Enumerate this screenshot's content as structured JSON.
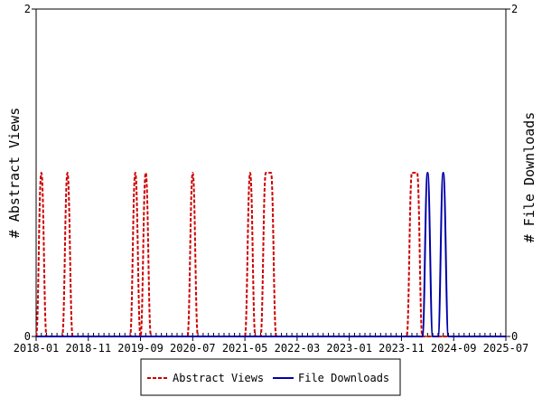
{
  "chart_data": {
    "type": "line",
    "ylabel_left": "# Abstract Views",
    "ylabel_right": "# File Downloads",
    "y_left_ticks": [
      "0",
      "2"
    ],
    "y_right_ticks": [
      "0",
      "2"
    ],
    "ylim": [
      0,
      2
    ],
    "xlim": [
      "2018-01",
      "2025-07"
    ],
    "x_tick_labels": [
      "2018-01",
      "2018-11",
      "2019-09",
      "2020-07",
      "2021-05",
      "2022-03",
      "2023-01",
      "2023-11",
      "2024-09",
      "2025-07"
    ],
    "grid": false,
    "legend_position": "bottom",
    "series": [
      {
        "name": "Abstract Views",
        "color": "#cc0000",
        "style": "dashed",
        "points": [
          {
            "x": "2018-02",
            "y": 1
          },
          {
            "x": "2018-07",
            "y": 1
          },
          {
            "x": "2019-08",
            "y": 1
          },
          {
            "x": "2019-10",
            "y": 1
          },
          {
            "x": "2020-07",
            "y": 1
          },
          {
            "x": "2021-06",
            "y": 1
          },
          {
            "x": "2021-09",
            "y": 1
          },
          {
            "x": "2021-10",
            "y": 1
          },
          {
            "x": "2024-01",
            "y": 1
          },
          {
            "x": "2024-02",
            "y": 1
          }
        ]
      },
      {
        "name": "File Downloads",
        "color": "#0000aa",
        "style": "solid",
        "points": [
          {
            "x": "2024-04",
            "y": 1
          },
          {
            "x": "2024-07",
            "y": 1
          }
        ]
      }
    ]
  }
}
